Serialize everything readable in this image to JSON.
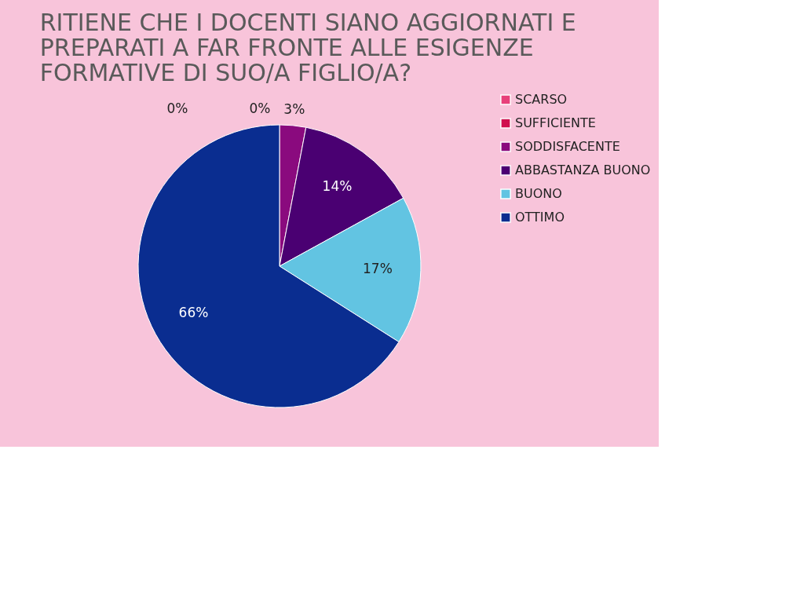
{
  "chart_data": {
    "type": "pie",
    "title": "RITIENE CHE I DOCENTI SIANO AGGIORNATI E PREPARATI A FAR FRONTE ALLE ESIGENZE FORMATIVE DI SUO/A  FIGLIO/A?",
    "categories": [
      "SCARSO",
      "SUFFICIENTE",
      "SODDISFACENTE",
      "ABBASTANZA BUONO",
      "BUONO",
      "OTTIMO"
    ],
    "values": [
      0,
      0,
      3,
      14,
      17,
      66
    ],
    "colors": [
      "#e8407a",
      "#d0104e",
      "#8a0a7e",
      "#4a0072",
      "#62c4e2",
      "#0a2d90"
    ],
    "value_labels": [
      "0%",
      "0%",
      "3%",
      "14%",
      "17%",
      "66%"
    ],
    "legend": "right"
  }
}
